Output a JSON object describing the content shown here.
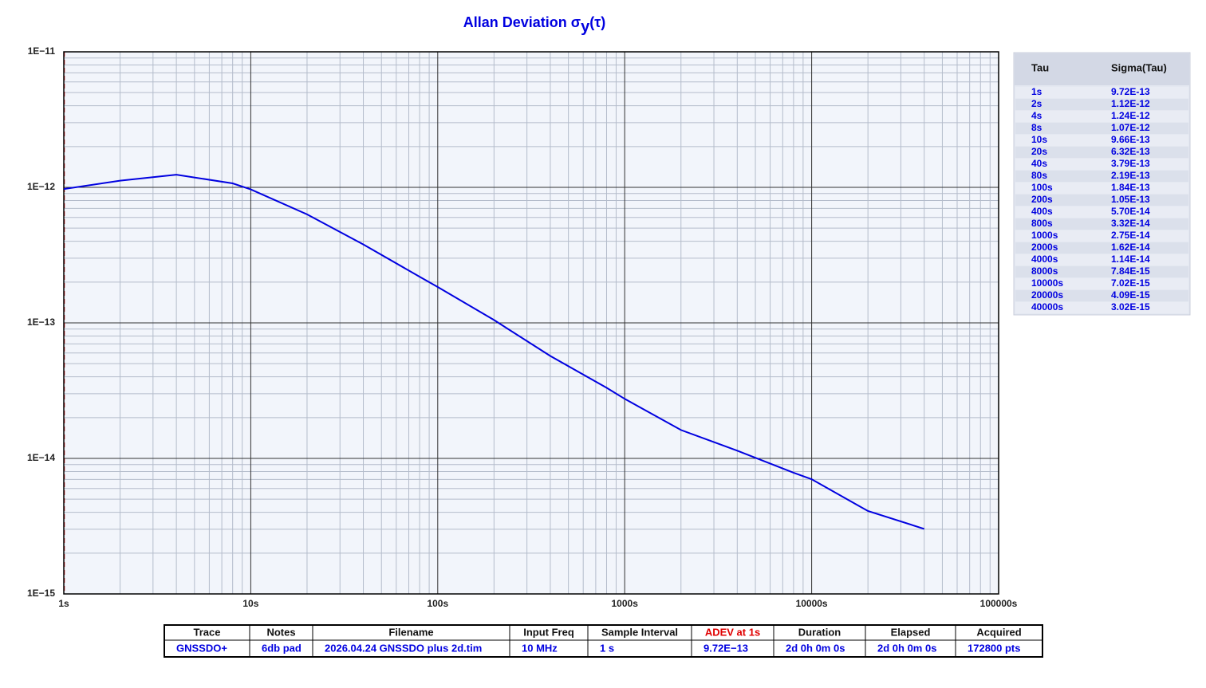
{
  "chart_data": {
    "type": "line",
    "title": "Allan Deviation σ",
    "title_subscript": "y",
    "title_suffix": "(τ)",
    "x": [
      1,
      2,
      4,
      8,
      10,
      20,
      40,
      80,
      100,
      200,
      400,
      800,
      1000,
      2000,
      4000,
      8000,
      10000,
      20000,
      40000
    ],
    "values": [
      9.72e-13,
      1.12e-12,
      1.24e-12,
      1.07e-12,
      9.66e-13,
      6.32e-13,
      3.79e-13,
      2.19e-13,
      1.84e-13,
      1.05e-13,
      5.7e-14,
      3.32e-14,
      2.75e-14,
      1.62e-14,
      1.14e-14,
      7.84e-15,
      7.02e-15,
      4.09e-15,
      3.02e-15
    ],
    "color": "#0000e0",
    "xlog": true,
    "ylog": true,
    "xlim": [
      1,
      100000
    ],
    "ylim": [
      1e-15,
      1e-11
    ],
    "xticks": [
      {
        "value": 1,
        "label": "1s"
      },
      {
        "value": 10,
        "label": "10s"
      },
      {
        "value": 100,
        "label": "100s"
      },
      {
        "value": 1000,
        "label": "1000s"
      },
      {
        "value": 10000,
        "label": "10000s"
      },
      {
        "value": 100000,
        "label": "100000s"
      }
    ],
    "yticks": [
      {
        "value": 1e-15,
        "label": "1E−15"
      },
      {
        "value": 1e-14,
        "label": "1E−14"
      },
      {
        "value": 1e-13,
        "label": "1E−13"
      },
      {
        "value": 1e-12,
        "label": "1E−12"
      },
      {
        "value": 1e-11,
        "label": "1E−11"
      }
    ],
    "grid": true,
    "minor_grid": true
  },
  "side_table": {
    "header": [
      "Tau",
      "Sigma(Tau)"
    ],
    "rows": [
      [
        "1s",
        "9.72E-13"
      ],
      [
        "2s",
        "1.12E-12"
      ],
      [
        "4s",
        "1.24E-12"
      ],
      [
        "8s",
        "1.07E-12"
      ],
      [
        "10s",
        "9.66E-13"
      ],
      [
        "20s",
        "6.32E-13"
      ],
      [
        "40s",
        "3.79E-13"
      ],
      [
        "80s",
        "2.19E-13"
      ],
      [
        "100s",
        "1.84E-13"
      ],
      [
        "200s",
        "1.05E-13"
      ],
      [
        "400s",
        "5.70E-14"
      ],
      [
        "800s",
        "3.32E-14"
      ],
      [
        "1000s",
        "2.75E-14"
      ],
      [
        "2000s",
        "1.62E-14"
      ],
      [
        "4000s",
        "1.14E-14"
      ],
      [
        "8000s",
        "7.84E-15"
      ],
      [
        "10000s",
        "7.02E-15"
      ],
      [
        "20000s",
        "4.09E-15"
      ],
      [
        "40000s",
        "3.02E-15"
      ]
    ]
  },
  "info_table": {
    "header": [
      "Trace",
      "Notes",
      "Filename",
      "Input Freq",
      "Sample Interval",
      "ADEV at 1s",
      "Duration",
      "Elapsed",
      "Acquired"
    ],
    "row": [
      "GNSSDO+",
      "6db pad",
      "2026.04.24 GNSSDO plus 2d.tim",
      "10 MHz",
      "1 s",
      "9.72E−13",
      "2d 0h 0m 0s",
      "2d 0h 0m 0s",
      "172800 pts"
    ]
  }
}
